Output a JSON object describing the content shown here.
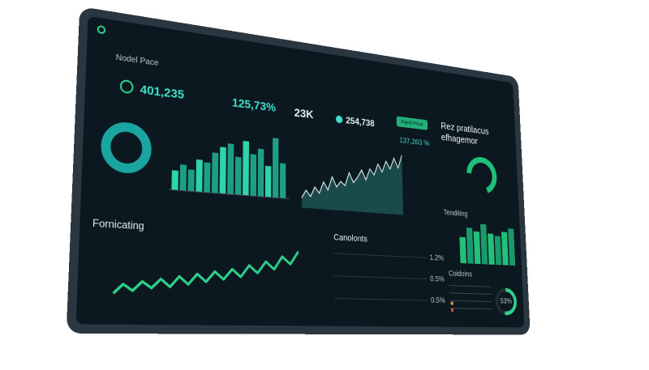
{
  "header": {
    "title": "Nodel Pace"
  },
  "kpis": [
    "401,235",
    "125,73%",
    "23K",
    "254,738",
    "137,263 %"
  ],
  "button": "Fastd Pous",
  "headline": [
    "Rez pratilacus",
    "efhagemor"
  ],
  "bar_chart": {
    "values": [
      18,
      24,
      20,
      30,
      28,
      38,
      44,
      48,
      36,
      52,
      40,
      46,
      30,
      58,
      34
    ]
  },
  "area_chart": {
    "values": [
      10,
      18,
      12,
      22,
      16,
      28,
      20,
      34,
      24,
      30,
      26,
      40,
      30,
      36,
      44,
      34,
      46,
      40,
      52,
      44,
      56,
      48,
      60,
      50,
      64
    ]
  },
  "right_bars": {
    "title": "Tenditing",
    "values": [
      40,
      55,
      50,
      62,
      48,
      45,
      52,
      58
    ]
  },
  "wave_chart": {
    "title": "Fornicating",
    "values": [
      8,
      14,
      10,
      16,
      12,
      18,
      13,
      20,
      15,
      22,
      17,
      24,
      19,
      26,
      21,
      29,
      24,
      32,
      27,
      36,
      31,
      40
    ]
  },
  "lines_panel": {
    "title": "Canolonts",
    "labels": [
      "1.2%",
      "0.5%",
      "0.5%"
    ]
  },
  "table_panel": {
    "title": "Coidoins",
    "donut": {
      "values": [
        53
      ],
      "value_labels": [
        "53%"
      ]
    }
  }
}
